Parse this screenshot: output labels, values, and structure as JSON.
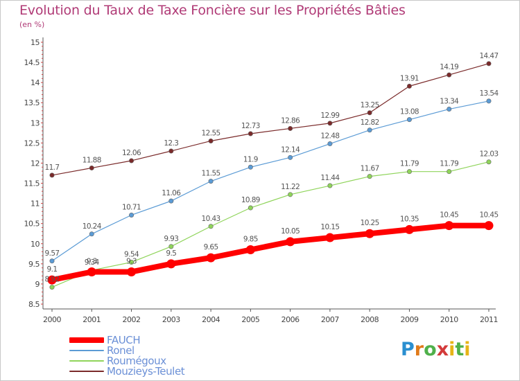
{
  "title": "Evolution du Taux de Taxe Foncière sur les Propriétés Bâties",
  "subtitle": "(en %)",
  "chart_data": {
    "type": "line",
    "x": [
      2000,
      2001,
      2002,
      2003,
      2004,
      2005,
      2006,
      2007,
      2008,
      2009,
      2010,
      2011
    ],
    "x_tick_labels": [
      "2000",
      "2001",
      "2002",
      "2003",
      "2004",
      "2005",
      "2006",
      "2007",
      "2008",
      "2009",
      "2010",
      "2011"
    ],
    "ylim": [
      8.5,
      15
    ],
    "y_ticks": [
      8.5,
      9,
      9.5,
      10,
      10.5,
      11,
      11.5,
      12,
      12.5,
      13,
      13.5,
      14,
      14.5,
      15
    ],
    "y_tick_labels": [
      "8.5",
      "9",
      "9.5",
      "10",
      "10.5",
      "11",
      "11.5",
      "12",
      "12.5",
      "13",
      "13.5",
      "14",
      "14.5",
      "15"
    ],
    "grid": false,
    "legend_position": "bottom-left",
    "series": [
      {
        "name": "FAUCH",
        "color": "#ff0000",
        "values": [
          9.1,
          9.3,
          9.3,
          9.5,
          9.65,
          9.85,
          10.05,
          10.15,
          10.25,
          10.35,
          10.45,
          10.45
        ],
        "labels": [
          "9.1",
          "9.3",
          "9.3",
          "9.5",
          "9.65",
          "9.85",
          "10.05",
          "10.15",
          "10.25",
          "10.35",
          "10.45",
          "10.45"
        ]
      },
      {
        "name": "Ronel",
        "color": "#5b9bd5",
        "values": [
          9.57,
          10.24,
          10.71,
          11.06,
          11.55,
          11.9,
          12.14,
          12.48,
          12.82,
          13.08,
          13.34,
          13.54
        ],
        "labels": [
          "9.57",
          "10.24",
          "10.71",
          "11.06",
          "11.55",
          "11.9",
          "12.14",
          "12.48",
          "12.82",
          "13.08",
          "13.34",
          "13.54"
        ]
      },
      {
        "name": "Roumégoux",
        "color": "#8fd45a",
        "values": [
          8.92,
          9.34,
          9.54,
          9.93,
          10.43,
          10.89,
          11.22,
          11.44,
          11.67,
          11.79,
          11.79,
          12.03
        ],
        "labels": [
          "8.92",
          "9.34",
          "9.54",
          "9.93",
          "10.43",
          "10.89",
          "11.22",
          "11.44",
          "11.67",
          "11.79",
          "11.79",
          "12.03"
        ]
      },
      {
        "name": "Mouzieys-Teulet",
        "color": "#7a2a2a",
        "values": [
          11.7,
          11.88,
          12.06,
          12.3,
          12.55,
          12.73,
          12.86,
          12.99,
          13.25,
          13.91,
          14.19,
          14.47
        ],
        "labels": [
          "11.7",
          "11.88",
          "12.06",
          "12.3",
          "12.55",
          "12.73",
          "12.86",
          "12.99",
          "13.25",
          "13.91",
          "14.19",
          "14.47"
        ]
      }
    ]
  },
  "logo": {
    "text": "Proxiti",
    "colors": [
      "#2a8fd0",
      "#e07a1a",
      "#4fb04a",
      "#d33a3a",
      "#e6b417"
    ]
  }
}
